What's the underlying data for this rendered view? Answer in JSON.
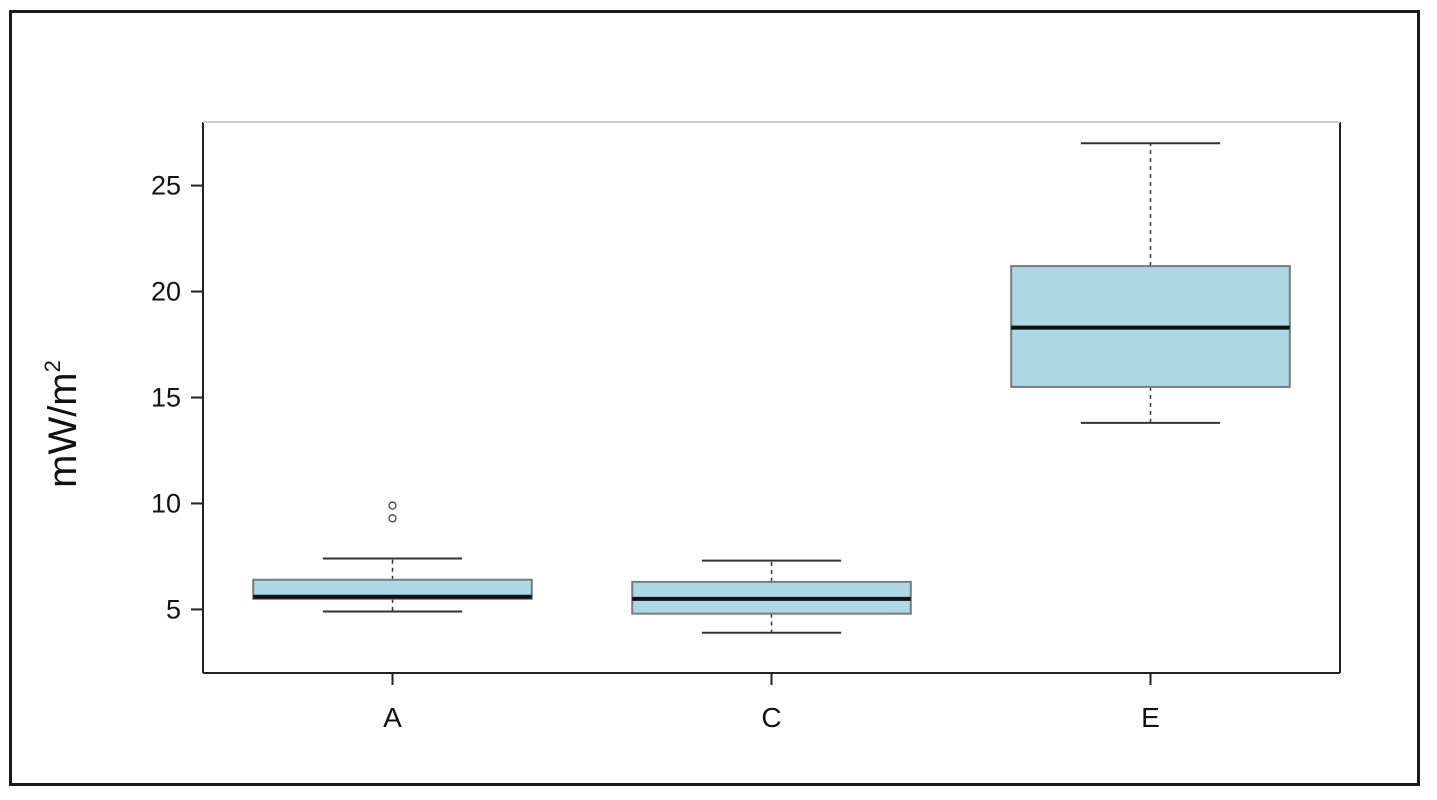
{
  "chart_data": {
    "type": "box",
    "title": "",
    "xlabel": "",
    "ylabel": {
      "base": "mW/m",
      "sup": "2"
    },
    "ylim": [
      2,
      28
    ],
    "yticks": [
      "5",
      "10",
      "15",
      "20",
      "25"
    ],
    "categories": [
      "A",
      "C",
      "E"
    ],
    "boxes": [
      {
        "label": "A",
        "whisker_low": 4.9,
        "q1": 5.5,
        "median": 5.6,
        "q3": 6.4,
        "whisker_high": 7.4,
        "outliers": [
          9.3,
          9.9
        ]
      },
      {
        "label": "C",
        "whisker_low": 3.9,
        "q1": 4.8,
        "median": 5.5,
        "q3": 6.3,
        "whisker_high": 7.3,
        "outliers": []
      },
      {
        "label": "E",
        "whisker_low": 13.8,
        "q1": 15.5,
        "median": 18.3,
        "q3": 21.2,
        "whisker_high": 27.0,
        "outliers": []
      }
    ],
    "box_color": "#add8e6",
    "grid": false,
    "legend": "none"
  }
}
